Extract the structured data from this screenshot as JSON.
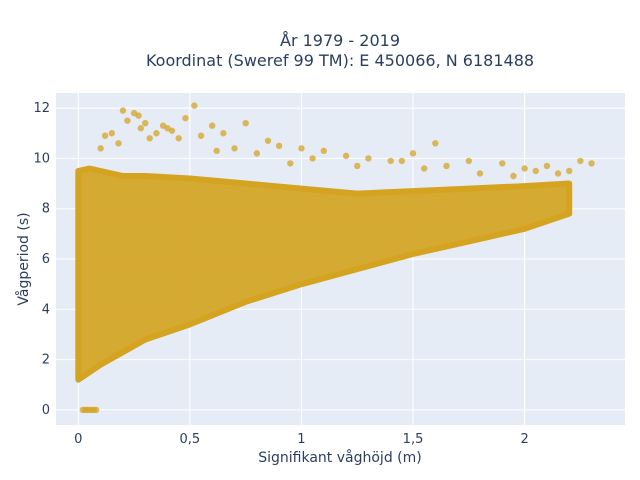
{
  "chart_data": {
    "type": "scatter",
    "title": [
      "År 1979 - 2019",
      "Koordinat (Sweref 99 TM): E 450066, N 6181488"
    ],
    "xlabel": "Signifikant våghöjd (m)",
    "ylabel": "Vågperiod (s)",
    "xlim": [
      -0.1,
      2.45
    ],
    "ylim": [
      -0.6,
      12.6
    ],
    "x_ticks": [
      0,
      0.5,
      1,
      1.5,
      2
    ],
    "x_tick_labels": [
      "0",
      "0,5",
      "1",
      "1,5",
      "2"
    ],
    "y_ticks": [
      0,
      2,
      4,
      6,
      8,
      10,
      12
    ],
    "y_tick_labels": [
      "0",
      "2",
      "4",
      "6",
      "8",
      "10",
      "12"
    ],
    "grid": true,
    "marker_color": "#d4a421",
    "background_color": "#e5ecf6",
    "envelope": {
      "x": [
        0,
        0.05,
        0.1,
        0.2,
        0.3,
        0.5,
        0.75,
        1.0,
        1.25,
        1.5,
        1.75,
        2.0,
        2.2
      ],
      "y_low": [
        1.2,
        1.5,
        1.8,
        2.3,
        2.8,
        3.4,
        4.3,
        5.0,
        5.6,
        6.2,
        6.7,
        7.2,
        7.8
      ],
      "y_high": [
        9.5,
        9.6,
        9.5,
        9.3,
        9.3,
        9.2,
        9.0,
        8.8,
        8.6,
        8.7,
        8.8,
        8.9,
        9.0
      ]
    },
    "series": [
      {
        "x": [
          0.02,
          0.03,
          0.04,
          0.05,
          0.06,
          0.07,
          0.08,
          0.2,
          0.22,
          0.25,
          0.28,
          0.3,
          0.35,
          0.4,
          0.45,
          0.52,
          0.6,
          0.65,
          0.7,
          0.75,
          0.85,
          0.9,
          1.0,
          1.1,
          1.2,
          1.3,
          1.4,
          1.5,
          1.6,
          1.75,
          1.9,
          2.0,
          2.1,
          2.2,
          2.25,
          2.3,
          0.15,
          0.18,
          0.32,
          0.42,
          0.55,
          0.62,
          0.8,
          0.95,
          1.05,
          1.25,
          1.45,
          1.55,
          1.65,
          1.8,
          1.95,
          2.05,
          2.15,
          0.1,
          0.12,
          0.27,
          0.38,
          0.48
        ],
        "y": [
          0,
          0,
          0,
          0,
          0,
          0,
          0,
          11.9,
          11.5,
          11.8,
          11.2,
          11.4,
          11.0,
          11.2,
          10.8,
          12.1,
          11.3,
          11.0,
          10.4,
          11.4,
          10.7,
          10.5,
          10.4,
          10.3,
          10.1,
          10.0,
          9.9,
          10.2,
          10.6,
          9.9,
          9.8,
          9.6,
          9.7,
          9.5,
          9.9,
          9.8,
          11.0,
          10.6,
          10.8,
          11.1,
          10.9,
          10.3,
          10.2,
          9.8,
          10.0,
          9.7,
          9.9,
          9.6,
          9.7,
          9.4,
          9.3,
          9.5,
          9.4,
          10.4,
          10.9,
          11.7,
          11.3,
          11.6
        ]
      }
    ]
  }
}
